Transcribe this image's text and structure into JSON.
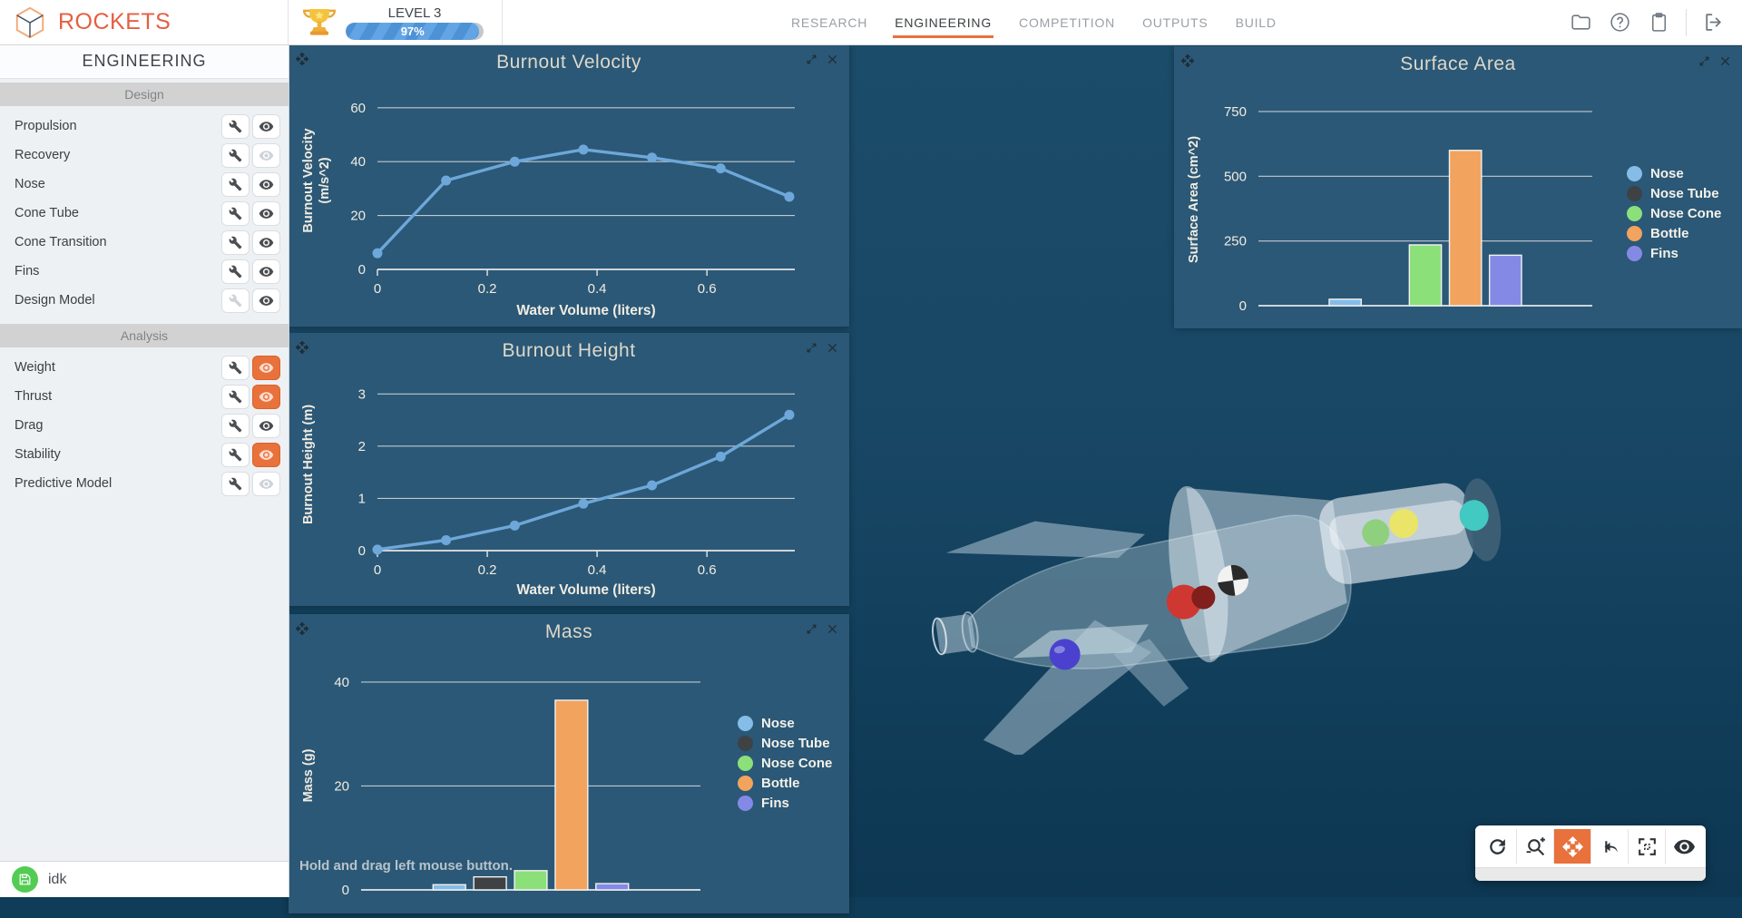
{
  "colors": {
    "accent": "#e8713c",
    "panel_bg": "#2b5876",
    "line": "#6ea7d9",
    "grid": "#e3e6e9",
    "series": {
      "Nose": "#85bce8",
      "Nose Tube": "#3f4245",
      "Nose Cone": "#8ce07a",
      "Bottle": "#f2a35e",
      "Fins": "#8589e6"
    }
  },
  "header": {
    "logo_text": "ROCKETS",
    "level_label": "LEVEL 3",
    "level_progress": "97%",
    "nav": [
      {
        "label": "RESEARCH",
        "active": false
      },
      {
        "label": "ENGINEERING",
        "active": true
      },
      {
        "label": "COMPETITION",
        "active": false
      },
      {
        "label": "OUTPUTS",
        "active": false
      },
      {
        "label": "BUILD",
        "active": false
      }
    ],
    "action_icons": [
      "folder",
      "help",
      "clipboard",
      "logout"
    ]
  },
  "sidebar": {
    "title": "ENGINEERING",
    "sections": [
      {
        "label": "Design",
        "items": [
          {
            "label": "Propulsion",
            "wrench": "normal",
            "eye": "normal"
          },
          {
            "label": "Recovery",
            "wrench": "normal",
            "eye": "disabled"
          },
          {
            "label": "Nose",
            "wrench": "normal",
            "eye": "normal"
          },
          {
            "label": "Cone Tube",
            "wrench": "normal",
            "eye": "normal"
          },
          {
            "label": "Cone Transition",
            "wrench": "normal",
            "eye": "normal"
          },
          {
            "label": "Fins",
            "wrench": "normal",
            "eye": "normal"
          },
          {
            "label": "Design Model",
            "wrench": "disabled",
            "eye": "normal"
          }
        ]
      },
      {
        "label": "Analysis",
        "items": [
          {
            "label": "Weight",
            "wrench": "normal",
            "eye": "active"
          },
          {
            "label": "Thrust",
            "wrench": "normal",
            "eye": "active"
          },
          {
            "label": "Drag",
            "wrench": "normal",
            "eye": "normal"
          },
          {
            "label": "Stability",
            "wrench": "normal",
            "eye": "active"
          },
          {
            "label": "Predictive Model",
            "wrench": "normal",
            "eye": "disabled"
          }
        ]
      }
    ],
    "save_name": "idk"
  },
  "panels": {
    "mass_hint": "Hold and drag left mouse button."
  },
  "chart_data": [
    {
      "type": "line",
      "title": "Burnout Velocity",
      "xlabel": "Water Volume (liters)",
      "ylabel": [
        "Burnout Velocity",
        "(m/s^2)"
      ],
      "x": [
        0,
        0.125,
        0.25,
        0.375,
        0.5,
        0.625,
        0.75
      ],
      "y": [
        6,
        33,
        40,
        44.5,
        41.5,
        37.5,
        27
      ],
      "xticks": [
        0,
        0.2,
        0.4,
        0.6
      ],
      "yticks": [
        0,
        20,
        40,
        60
      ],
      "xlim": [
        0,
        0.76
      ],
      "ylim": [
        0,
        66
      ],
      "grid": true,
      "legend_position": "none",
      "line_color": "#6ea7d9"
    },
    {
      "type": "line",
      "title": "Burnout Height",
      "xlabel": "Water Volume (liters)",
      "ylabel": [
        "Burnout Height (m)"
      ],
      "x": [
        0,
        0.125,
        0.25,
        0.375,
        0.5,
        0.625,
        0.75
      ],
      "y": [
        0.02,
        0.2,
        0.48,
        0.9,
        1.25,
        1.8,
        2.6
      ],
      "xticks": [
        0,
        0.2,
        0.4,
        0.6
      ],
      "yticks": [
        0,
        1,
        2,
        3
      ],
      "xlim": [
        0,
        0.76
      ],
      "ylim": [
        0,
        3.3
      ],
      "grid": true,
      "legend_position": "none",
      "line_color": "#6ea7d9"
    },
    {
      "type": "bar",
      "title": "Mass",
      "xlabel": "",
      "ylabel": [
        "Mass (g)"
      ],
      "categories": [
        "Nose",
        "Nose Tube",
        "Nose Cone",
        "Bottle",
        "Fins"
      ],
      "values": [
        1,
        2.5,
        3.7,
        36.5,
        1.2
      ],
      "yticks": [
        0,
        20,
        40
      ],
      "ylim": [
        0,
        44
      ],
      "grid": true,
      "legend_position": "right"
    },
    {
      "type": "bar",
      "title": "Surface Area",
      "xlabel": "",
      "ylabel": [
        "Surface Area (cm^2)"
      ],
      "categories": [
        "Nose",
        "Nose Tube",
        "Nose Cone",
        "Bottle",
        "Fins"
      ],
      "values": [
        25,
        0,
        235,
        600,
        195
      ],
      "yticks": [
        0,
        250,
        500,
        750
      ],
      "ylim": [
        0,
        820
      ],
      "grid": true,
      "legend_position": "right"
    }
  ],
  "viewport_toolbar": {
    "buttons": [
      {
        "name": "rotate",
        "active": false
      },
      {
        "name": "zoom",
        "active": false
      },
      {
        "name": "pan",
        "active": true
      },
      {
        "name": "undo",
        "active": false
      },
      {
        "name": "frame",
        "active": false
      },
      {
        "name": "visibility",
        "active": false
      }
    ]
  }
}
